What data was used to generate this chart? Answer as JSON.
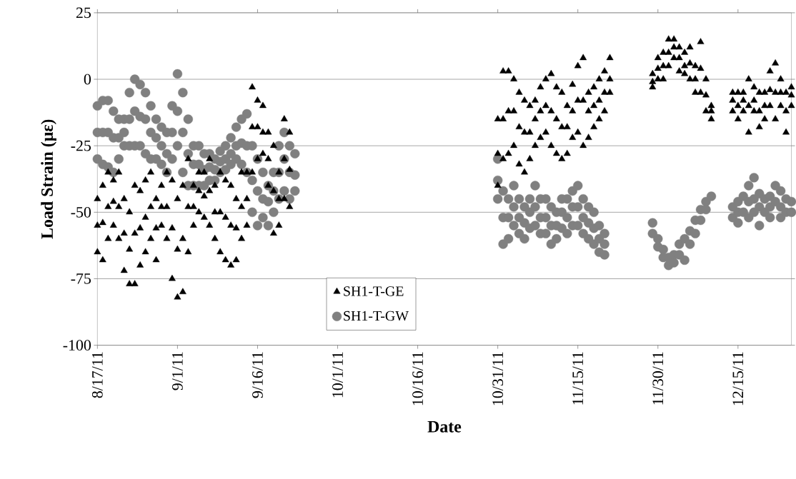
{
  "chart_data": {
    "type": "scatter",
    "xlabel": "Date",
    "ylabel": "Load Strain (με)",
    "xlim": [
      "2011-08-17",
      "2011-12-25"
    ],
    "xticks": [
      {
        "value": "2011-08-17",
        "label": "8/17/11"
      },
      {
        "value": "2011-09-01",
        "label": "9/1/11"
      },
      {
        "value": "2011-09-16",
        "label": "9/16/11"
      },
      {
        "value": "2011-10-01",
        "label": "10/1/11"
      },
      {
        "value": "2011-10-16",
        "label": "10/16/11"
      },
      {
        "value": "2011-10-31",
        "label": "10/31/11"
      },
      {
        "value": "2011-11-15",
        "label": "11/15/11"
      },
      {
        "value": "2011-11-30",
        "label": "11/30/11"
      },
      {
        "value": "2011-12-15",
        "label": "12/15/11"
      }
    ],
    "ylim": [
      -100,
      25
    ],
    "yticks": [
      25,
      0,
      -25,
      -50,
      -75,
      -100
    ],
    "grid": "y",
    "legend": "bottom left",
    "series": [
      {
        "name": "SH1-T-GE",
        "color": "#000000",
        "marker": "triangle",
        "x": [
          "2011-08-17",
          "2011-08-17",
          "2011-08-17",
          "2011-08-18",
          "2011-08-18",
          "2011-08-18",
          "2011-08-19",
          "2011-08-19",
          "2011-08-19",
          "2011-08-20",
          "2011-08-20",
          "2011-08-20",
          "2011-08-21",
          "2011-08-21",
          "2011-08-21",
          "2011-08-22",
          "2011-08-22",
          "2011-08-22",
          "2011-08-23",
          "2011-08-23",
          "2011-08-23",
          "2011-08-24",
          "2011-08-24",
          "2011-08-24",
          "2011-08-25",
          "2011-08-25",
          "2011-08-25",
          "2011-08-26",
          "2011-08-26",
          "2011-08-26",
          "2011-08-27",
          "2011-08-27",
          "2011-08-27",
          "2011-08-28",
          "2011-08-28",
          "2011-08-28",
          "2011-08-29",
          "2011-08-29",
          "2011-08-29",
          "2011-08-30",
          "2011-08-30",
          "2011-08-30",
          "2011-08-31",
          "2011-08-31",
          "2011-08-31",
          "2011-09-01",
          "2011-09-01",
          "2011-09-01",
          "2011-09-02",
          "2011-09-02",
          "2011-09-02",
          "2011-09-03",
          "2011-09-03",
          "2011-09-03",
          "2011-09-04",
          "2011-09-04",
          "2011-09-04",
          "2011-09-05",
          "2011-09-05",
          "2011-09-05",
          "2011-09-06",
          "2011-09-06",
          "2011-09-06",
          "2011-09-07",
          "2011-09-07",
          "2011-09-07",
          "2011-09-08",
          "2011-09-08",
          "2011-09-08",
          "2011-09-09",
          "2011-09-09",
          "2011-09-09",
          "2011-09-10",
          "2011-09-10",
          "2011-09-10",
          "2011-09-11",
          "2011-09-11",
          "2011-09-11",
          "2011-09-12",
          "2011-09-12",
          "2011-09-12",
          "2011-09-13",
          "2011-09-13",
          "2011-09-13",
          "2011-09-14",
          "2011-09-14",
          "2011-09-14",
          "2011-09-15",
          "2011-09-15",
          "2011-09-15",
          "2011-09-16",
          "2011-09-16",
          "2011-09-16",
          "2011-09-17",
          "2011-09-17",
          "2011-09-17",
          "2011-09-18",
          "2011-09-18",
          "2011-09-18",
          "2011-09-19",
          "2011-09-19",
          "2011-09-19",
          "2011-09-20",
          "2011-09-20",
          "2011-09-20",
          "2011-09-21",
          "2011-09-21",
          "2011-09-21",
          "2011-09-22",
          "2011-09-22",
          "2011-09-22",
          "2011-10-31",
          "2011-10-31",
          "2011-10-31",
          "2011-11-01",
          "2011-11-01",
          "2011-11-01",
          "2011-11-02",
          "2011-11-02",
          "2011-11-02",
          "2011-11-03",
          "2011-11-03",
          "2011-11-03",
          "2011-11-04",
          "2011-11-04",
          "2011-11-04",
          "2011-11-05",
          "2011-11-05",
          "2011-11-05",
          "2011-11-06",
          "2011-11-06",
          "2011-11-06",
          "2011-11-07",
          "2011-11-07",
          "2011-11-07",
          "2011-11-08",
          "2011-11-08",
          "2011-11-08",
          "2011-11-09",
          "2011-11-09",
          "2011-11-09",
          "2011-11-10",
          "2011-11-10",
          "2011-11-10",
          "2011-11-11",
          "2011-11-11",
          "2011-11-11",
          "2011-11-12",
          "2011-11-12",
          "2011-11-12",
          "2011-11-13",
          "2011-11-13",
          "2011-11-13",
          "2011-11-14",
          "2011-11-14",
          "2011-11-14",
          "2011-11-15",
          "2011-11-15",
          "2011-11-15",
          "2011-11-16",
          "2011-11-16",
          "2011-11-16",
          "2011-11-17",
          "2011-11-17",
          "2011-11-17",
          "2011-11-18",
          "2011-11-18",
          "2011-11-18",
          "2011-11-19",
          "2011-11-19",
          "2011-11-19",
          "2011-11-20",
          "2011-11-20",
          "2011-11-20",
          "2011-11-21",
          "2011-11-21",
          "2011-11-21",
          "2011-11-29",
          "2011-11-29",
          "2011-11-29",
          "2011-11-30",
          "2011-11-30",
          "2011-11-30",
          "2011-12-01",
          "2011-12-01",
          "2011-12-01",
          "2011-12-02",
          "2011-12-02",
          "2011-12-02",
          "2011-12-03",
          "2011-12-03",
          "2011-12-03",
          "2011-12-04",
          "2011-12-04",
          "2011-12-04",
          "2011-12-05",
          "2011-12-05",
          "2011-12-05",
          "2011-12-06",
          "2011-12-06",
          "2011-12-06",
          "2011-12-07",
          "2011-12-07",
          "2011-12-07",
          "2011-12-08",
          "2011-12-08",
          "2011-12-08",
          "2011-12-09",
          "2011-12-09",
          "2011-12-09",
          "2011-12-10",
          "2011-12-10",
          "2011-12-10",
          "2011-12-14",
          "2011-12-14",
          "2011-12-14",
          "2011-12-15",
          "2011-12-15",
          "2011-12-15",
          "2011-12-16",
          "2011-12-16",
          "2011-12-16",
          "2011-12-17",
          "2011-12-17",
          "2011-12-17",
          "2011-12-18",
          "2011-12-18",
          "2011-12-18",
          "2011-12-19",
          "2011-12-19",
          "2011-12-19",
          "2011-12-20",
          "2011-12-20",
          "2011-12-20",
          "2011-12-21",
          "2011-12-21",
          "2011-12-21",
          "2011-12-22",
          "2011-12-22",
          "2011-12-22",
          "2011-12-23",
          "2011-12-23",
          "2011-12-23",
          "2011-12-24",
          "2011-12-24",
          "2011-12-24",
          "2011-12-25",
          "2011-12-25",
          "2011-12-25"
        ],
        "values": [
          -45,
          -55,
          -65,
          -40,
          -54,
          -68,
          -35,
          -48,
          -60,
          -38,
          -46,
          -55,
          -35,
          -48,
          -60,
          -45,
          -58,
          -72,
          -50,
          -64,
          -77,
          -40,
          -58,
          -77,
          -42,
          -56,
          -70,
          -38,
          -52,
          -65,
          -35,
          -48,
          -60,
          -45,
          -56,
          -68,
          -40,
          -48,
          -55,
          -35,
          -48,
          -60,
          -38,
          -56,
          -75,
          -45,
          -64,
          -82,
          -40,
          -60,
          -80,
          -30,
          -48,
          -65,
          -40,
          -48,
          -55,
          -35,
          -42,
          -50,
          -35,
          -44,
          -52,
          -30,
          -42,
          -55,
          -40,
          -50,
          -60,
          -35,
          -50,
          -65,
          -38,
          -52,
          -68,
          -40,
          -55,
          -70,
          -45,
          -56,
          -68,
          -35,
          -48,
          -60,
          -35,
          -45,
          -55,
          -3,
          -18,
          -35,
          -8,
          -18,
          -30,
          -10,
          -20,
          -28,
          -20,
          -30,
          -40,
          -25,
          -42,
          -58,
          -35,
          -45,
          -55,
          -15,
          -30,
          -45,
          -20,
          -34,
          -48,
          -15,
          -28,
          -40,
          3,
          -15,
          -30,
          3,
          -12,
          -28,
          0,
          -12,
          -25,
          -5,
          -18,
          -32,
          -8,
          -20,
          -35,
          -10,
          -20,
          -30,
          -8,
          -15,
          -25,
          -3,
          -12,
          -22,
          0,
          -10,
          -20,
          2,
          -12,
          -25,
          -3,
          -15,
          -28,
          -5,
          -18,
          -30,
          -10,
          -18,
          -28,
          -2,
          -12,
          -22,
          5,
          -8,
          -20,
          8,
          -8,
          -25,
          -5,
          -12,
          -22,
          -3,
          -10,
          -18,
          0,
          -8,
          -15,
          3,
          -5,
          -12,
          8,
          0,
          -5,
          2,
          -1,
          -3,
          8,
          4,
          0,
          10,
          5,
          0,
          15,
          10,
          5,
          15,
          12,
          8,
          12,
          8,
          3,
          10,
          5,
          2,
          12,
          6,
          0,
          5,
          0,
          -5,
          14,
          4,
          -5,
          0,
          -6,
          -12,
          -10,
          -12,
          -15,
          -5,
          -8,
          -12,
          -5,
          -10,
          -15,
          -5,
          -8,
          -12,
          0,
          -10,
          -20,
          -3,
          -8,
          -12,
          -5,
          -12,
          -18,
          -5,
          -10,
          -15,
          3,
          -4,
          -10,
          6,
          -5,
          -15,
          0,
          -5,
          -10,
          -5,
          -12,
          -20,
          -3,
          -6,
          -10
        ]
      },
      {
        "name": "SH1-T-GW",
        "color": "#808080",
        "marker": "circle",
        "x": [
          "2011-08-17",
          "2011-08-17",
          "2011-08-17",
          "2011-08-18",
          "2011-08-18",
          "2011-08-18",
          "2011-08-19",
          "2011-08-19",
          "2011-08-19",
          "2011-08-20",
          "2011-08-20",
          "2011-08-20",
          "2011-08-21",
          "2011-08-21",
          "2011-08-21",
          "2011-08-22",
          "2011-08-22",
          "2011-08-22",
          "2011-08-23",
          "2011-08-23",
          "2011-08-23",
          "2011-08-24",
          "2011-08-24",
          "2011-08-24",
          "2011-08-25",
          "2011-08-25",
          "2011-08-25",
          "2011-08-26",
          "2011-08-26",
          "2011-08-26",
          "2011-08-27",
          "2011-08-27",
          "2011-08-27",
          "2011-08-28",
          "2011-08-28",
          "2011-08-28",
          "2011-08-29",
          "2011-08-29",
          "2011-08-29",
          "2011-08-30",
          "2011-08-30",
          "2011-08-30",
          "2011-08-31",
          "2011-08-31",
          "2011-08-31",
          "2011-09-01",
          "2011-09-01",
          "2011-09-01",
          "2011-09-02",
          "2011-09-02",
          "2011-09-02",
          "2011-09-03",
          "2011-09-03",
          "2011-09-03",
          "2011-09-04",
          "2011-09-04",
          "2011-09-04",
          "2011-09-05",
          "2011-09-05",
          "2011-09-05",
          "2011-09-06",
          "2011-09-06",
          "2011-09-06",
          "2011-09-07",
          "2011-09-07",
          "2011-09-07",
          "2011-09-08",
          "2011-09-08",
          "2011-09-08",
          "2011-09-09",
          "2011-09-09",
          "2011-09-09",
          "2011-09-10",
          "2011-09-10",
          "2011-09-10",
          "2011-09-11",
          "2011-09-11",
          "2011-09-11",
          "2011-09-12",
          "2011-09-12",
          "2011-09-12",
          "2011-09-13",
          "2011-09-13",
          "2011-09-13",
          "2011-09-14",
          "2011-09-14",
          "2011-09-14",
          "2011-09-15",
          "2011-09-15",
          "2011-09-15",
          "2011-09-16",
          "2011-09-16",
          "2011-09-16",
          "2011-09-17",
          "2011-09-17",
          "2011-09-17",
          "2011-09-18",
          "2011-09-18",
          "2011-09-18",
          "2011-09-19",
          "2011-09-19",
          "2011-09-19",
          "2011-09-20",
          "2011-09-20",
          "2011-09-20",
          "2011-09-21",
          "2011-09-21",
          "2011-09-21",
          "2011-09-22",
          "2011-09-22",
          "2011-09-22",
          "2011-09-23",
          "2011-09-23",
          "2011-09-23",
          "2011-10-31",
          "2011-10-31",
          "2011-10-31",
          "2011-11-01",
          "2011-11-01",
          "2011-11-01",
          "2011-11-02",
          "2011-11-02",
          "2011-11-02",
          "2011-11-03",
          "2011-11-03",
          "2011-11-03",
          "2011-11-04",
          "2011-11-04",
          "2011-11-04",
          "2011-11-05",
          "2011-11-05",
          "2011-11-05",
          "2011-11-06",
          "2011-11-06",
          "2011-11-06",
          "2011-11-07",
          "2011-11-07",
          "2011-11-07",
          "2011-11-08",
          "2011-11-08",
          "2011-11-08",
          "2011-11-09",
          "2011-11-09",
          "2011-11-09",
          "2011-11-10",
          "2011-11-10",
          "2011-11-10",
          "2011-11-11",
          "2011-11-11",
          "2011-11-11",
          "2011-11-12",
          "2011-11-12",
          "2011-11-12",
          "2011-11-13",
          "2011-11-13",
          "2011-11-13",
          "2011-11-14",
          "2011-11-14",
          "2011-11-14",
          "2011-11-15",
          "2011-11-15",
          "2011-11-15",
          "2011-11-16",
          "2011-11-16",
          "2011-11-16",
          "2011-11-17",
          "2011-11-17",
          "2011-11-17",
          "2011-11-18",
          "2011-11-18",
          "2011-11-18",
          "2011-11-19",
          "2011-11-19",
          "2011-11-19",
          "2011-11-20",
          "2011-11-20",
          "2011-11-20",
          "2011-11-29",
          "2011-11-29",
          "2011-11-30",
          "2011-11-30",
          "2011-12-01",
          "2011-12-01",
          "2011-12-02",
          "2011-12-02",
          "2011-12-03",
          "2011-12-03",
          "2011-12-04",
          "2011-12-04",
          "2011-12-05",
          "2011-12-05",
          "2011-12-06",
          "2011-12-06",
          "2011-12-07",
          "2011-12-07",
          "2011-12-08",
          "2011-12-08",
          "2011-12-09",
          "2011-12-09",
          "2011-12-10",
          "2011-12-14",
          "2011-12-14",
          "2011-12-15",
          "2011-12-15",
          "2011-12-15",
          "2011-12-16",
          "2011-12-16",
          "2011-12-17",
          "2011-12-17",
          "2011-12-17",
          "2011-12-18",
          "2011-12-18",
          "2011-12-18",
          "2011-12-19",
          "2011-12-19",
          "2011-12-19",
          "2011-12-20",
          "2011-12-20",
          "2011-12-21",
          "2011-12-21",
          "2011-12-21",
          "2011-12-22",
          "2011-12-22",
          "2011-12-23",
          "2011-12-23",
          "2011-12-23",
          "2011-12-24",
          "2011-12-24",
          "2011-12-25",
          "2011-12-25"
        ],
        "values": [
          -10,
          -20,
          -30,
          -8,
          -20,
          -32,
          -8,
          -20,
          -33,
          -12,
          -22,
          -35,
          -15,
          -22,
          -30,
          -15,
          -20,
          -25,
          -5,
          -15,
          -25,
          0,
          -12,
          -25,
          -2,
          -14,
          -25,
          -5,
          -15,
          -28,
          -10,
          -20,
          -30,
          -15,
          -22,
          -30,
          -18,
          -25,
          -32,
          -20,
          -28,
          -35,
          -10,
          -20,
          -30,
          2,
          -12,
          -25,
          -5,
          -20,
          -35,
          -15,
          -28,
          -40,
          -25,
          -32,
          -40,
          -25,
          -32,
          -40,
          -28,
          -34,
          -40,
          -28,
          -33,
          -38,
          -30,
          -34,
          -38,
          -27,
          -31,
          -35,
          -25,
          -30,
          -34,
          -22,
          -28,
          -32,
          -18,
          -25,
          -30,
          -15,
          -24,
          -32,
          -13,
          -25,
          -35,
          -25,
          -38,
          -50,
          -30,
          -42,
          -55,
          -35,
          -45,
          -52,
          -40,
          -46,
          -55,
          -35,
          -42,
          -50,
          -25,
          -35,
          -45,
          -20,
          -30,
          -42,
          -25,
          -35,
          -45,
          -28,
          -36,
          -42,
          -30,
          -38,
          -45,
          -42,
          -52,
          -62,
          -45,
          -52,
          -60,
          -40,
          -48,
          -55,
          -45,
          -52,
          -58,
          -48,
          -54,
          -60,
          -45,
          -50,
          -56,
          -40,
          -48,
          -55,
          -45,
          -52,
          -58,
          -45,
          -52,
          -58,
          -48,
          -55,
          -62,
          -50,
          -55,
          -60,
          -45,
          -50,
          -56,
          -45,
          -52,
          -58,
          -42,
          -48,
          -55,
          -40,
          -48,
          -55,
          -45,
          -52,
          -58,
          -48,
          -54,
          -60,
          -50,
          -56,
          -62,
          -55,
          -60,
          -65,
          -58,
          -62,
          -66,
          -54,
          -58,
          -60,
          -63,
          -64,
          -67,
          -67,
          -70,
          -66,
          -69,
          -62,
          -66,
          -60,
          -68,
          -57,
          -62,
          -53,
          -58,
          -49,
          -53,
          -46,
          -49,
          -44,
          -48,
          -52,
          -46,
          -50,
          -54,
          -44,
          -50,
          -40,
          -46,
          -52,
          -37,
          -45,
          -50,
          -43,
          -48,
          -55,
          -45,
          -50,
          -44,
          -48,
          -52,
          -40,
          -46,
          -42,
          -48,
          -52,
          -45,
          -50,
          -46,
          -50
        ]
      }
    ]
  }
}
